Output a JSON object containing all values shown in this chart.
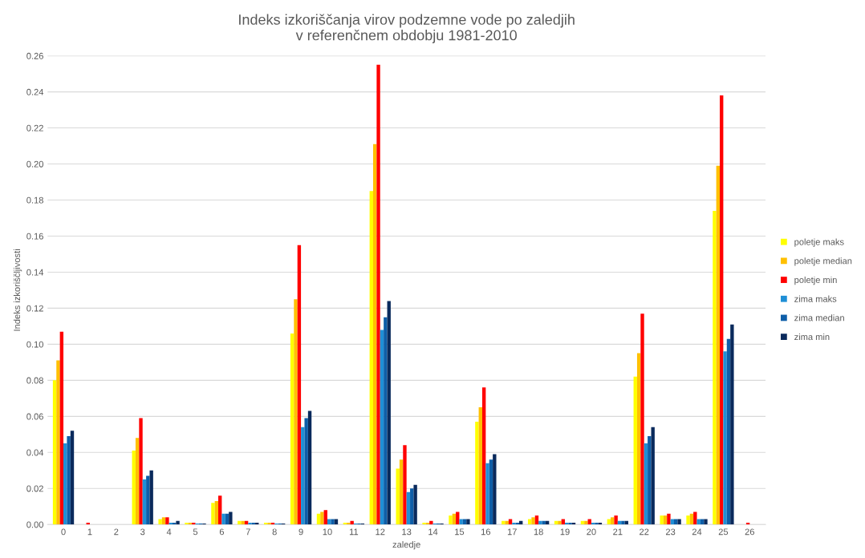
{
  "chart_data": {
    "type": "bar",
    "title": "Indeks izkoriščanja virov podzemne vode po zaledjih\nv referenčnem obdobju 1981-2010",
    "xlabel": "zaledje",
    "ylabel": "Indeks izkoriščljivosti",
    "categories": [
      "0",
      "1",
      "2",
      "3",
      "4",
      "5",
      "6",
      "7",
      "8",
      "9",
      "10",
      "11",
      "12",
      "13",
      "14",
      "15",
      "16",
      "17",
      "18",
      "19",
      "20",
      "21",
      "22",
      "23",
      "24",
      "25",
      "26"
    ],
    "series": [
      {
        "name": "poletje maks",
        "color": "#ffff00",
        "values": [
          0.08,
          0,
          0,
          0.041,
          0.003,
          0.001,
          0.012,
          0.002,
          0.001,
          0.106,
          0.006,
          0.001,
          0.185,
          0.031,
          0.001,
          0.005,
          0.057,
          0.002,
          0.003,
          0.002,
          0.002,
          0.003,
          0.082,
          0.005,
          0.005,
          0.174,
          0
        ]
      },
      {
        "name": "poletje median",
        "color": "#ffc000",
        "values": [
          0.091,
          0,
          0,
          0.048,
          0.004,
          0.001,
          0.013,
          0.002,
          0.001,
          0.125,
          0.007,
          0.001,
          0.211,
          0.036,
          0.001,
          0.006,
          0.065,
          0.002,
          0.004,
          0.002,
          0.002,
          0.004,
          0.095,
          0.005,
          0.006,
          0.199,
          0
        ]
      },
      {
        "name": "poletje min",
        "color": "#ff0000",
        "values": [
          0.107,
          0.001,
          0,
          0.059,
          0.004,
          0.001,
          0.016,
          0.002,
          0.001,
          0.155,
          0.008,
          0.002,
          0.255,
          0.044,
          0.002,
          0.007,
          0.076,
          0.003,
          0.005,
          0.003,
          0.003,
          0.005,
          0.117,
          0.006,
          0.007,
          0.238,
          0.001
        ]
      },
      {
        "name": "zima maks",
        "color": "#1f8fd6",
        "values": [
          0.045,
          0,
          0,
          0.025,
          0.001,
          0.0005,
          0.006,
          0.001,
          0.0005,
          0.054,
          0.003,
          0.0005,
          0.108,
          0.018,
          0.0005,
          0.003,
          0.034,
          0.001,
          0.002,
          0.001,
          0.001,
          0.002,
          0.045,
          0.003,
          0.003,
          0.096,
          0
        ]
      },
      {
        "name": "zima median",
        "color": "#0e5ea8",
        "values": [
          0.049,
          0,
          0,
          0.027,
          0.001,
          0.0005,
          0.006,
          0.001,
          0.0005,
          0.059,
          0.003,
          0.0005,
          0.115,
          0.02,
          0.0005,
          0.003,
          0.036,
          0.001,
          0.002,
          0.001,
          0.001,
          0.002,
          0.049,
          0.003,
          0.003,
          0.103,
          0
        ]
      },
      {
        "name": "zima min",
        "color": "#0a2a5c",
        "values": [
          0.052,
          0,
          0,
          0.03,
          0.002,
          0.0005,
          0.007,
          0.001,
          0.0005,
          0.063,
          0.003,
          0.0005,
          0.124,
          0.022,
          0.0005,
          0.003,
          0.039,
          0.002,
          0.002,
          0.001,
          0.001,
          0.002,
          0.054,
          0.003,
          0.003,
          0.111,
          0
        ]
      }
    ],
    "ylim": [
      0,
      0.26
    ],
    "yticks": [
      {
        "value": 0,
        "label": "0.00"
      },
      {
        "value": 0.02,
        "label": "0.02"
      },
      {
        "value": 0.04,
        "label": "0.04"
      },
      {
        "value": 0.06,
        "label": "0.06"
      },
      {
        "value": 0.08,
        "label": "0.08"
      },
      {
        "value": 0.1,
        "label": "0.10"
      },
      {
        "value": 0.12,
        "label": "0.12"
      },
      {
        "value": 0.14,
        "label": "0.14"
      },
      {
        "value": 0.16,
        "label": "0.16"
      },
      {
        "value": 0.18,
        "label": "0.18"
      },
      {
        "value": 0.2,
        "label": "0.20"
      },
      {
        "value": 0.22,
        "label": "0.22"
      },
      {
        "value": 0.24,
        "label": "0.24"
      },
      {
        "value": 0.26,
        "label": "0.26"
      }
    ],
    "grid": "y",
    "legend": "right"
  }
}
